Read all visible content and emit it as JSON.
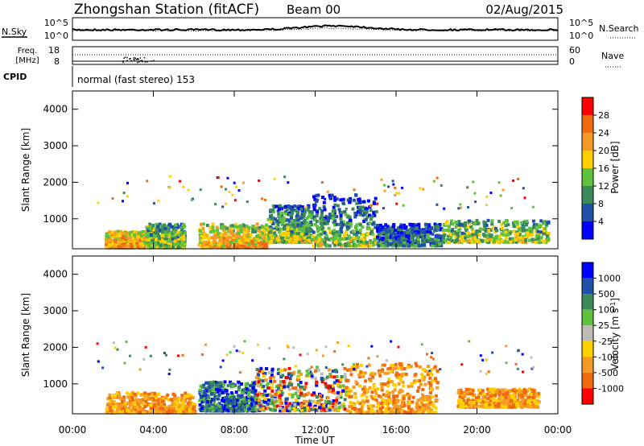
{
  "header": {
    "station": "Zhongshan Station (fitACF)",
    "beam": "Beam 00",
    "date": "02/Aug/2015"
  },
  "strip": {
    "nsky_label": "N.Sky",
    "nsearch_label": "N.Search",
    "freq_label_1": "Freq.",
    "freq_label_2": "[MHz]",
    "nave_label": "Nave",
    "cpid_label": "CPID",
    "cpid_text": "normal (fast stereo) 153",
    "noise_left_ticks": [
      "10^5",
      "10^0"
    ],
    "noise_right_ticks": [
      "10^5",
      "10^0"
    ],
    "freq_left_ticks": [
      "18",
      "8"
    ],
    "freq_right_ticks": [
      "60",
      "0"
    ]
  },
  "chart_data": [
    {
      "type": "heatmap",
      "panel": "power",
      "ylabel": "Slant Range [km]",
      "xlabel": "Time UT",
      "ylim": [
        180,
        4500
      ],
      "y_ticks": [
        "1000",
        "2000",
        "3000",
        "4000"
      ],
      "x_ticks": [
        "00:00",
        "04:00",
        "08:00",
        "12:00",
        "16:00",
        "20:00",
        "00:00"
      ],
      "colorbar": {
        "label": "Power [dB]",
        "ticks": [
          "4",
          "8",
          "12",
          "16",
          "20",
          "24",
          "28"
        ],
        "colors": [
          "#0000ff",
          "#2050a8",
          "#3c8a5a",
          "#5ec23c",
          "#ffd000",
          "#f59a24",
          "#f06a10",
          "#ff0000"
        ]
      },
      "regions": [
        {
          "t": [
            1.6,
            3.6
          ],
          "r": [
            250,
            700
          ],
          "value": "high"
        },
        {
          "t": [
            3.6,
            5.5
          ],
          "r": [
            250,
            900
          ],
          "value": "medium"
        },
        {
          "t": [
            6.2,
            9.6
          ],
          "r": [
            250,
            900
          ],
          "value": "high"
        },
        {
          "t": [
            9.6,
            11.8
          ],
          "r": [
            400,
            1400
          ],
          "value": "medium"
        },
        {
          "t": [
            11.8,
            15.0
          ],
          "r": [
            300,
            1700
          ],
          "value": "medium"
        },
        {
          "t": [
            15.0,
            18.2
          ],
          "r": [
            300,
            900
          ],
          "value": "low"
        },
        {
          "t": [
            18.2,
            23.5
          ],
          "r": [
            400,
            1000
          ],
          "value": "medium"
        }
      ]
    },
    {
      "type": "heatmap",
      "panel": "velocity",
      "ylabel": "Slant Range [km]",
      "xlabel": "Time UT",
      "ylim": [
        180,
        4500
      ],
      "y_ticks": [
        "1000",
        "2000",
        "3000",
        "4000"
      ],
      "x_ticks": [
        "00:00",
        "04:00",
        "08:00",
        "12:00",
        "16:00",
        "20:00",
        "00:00"
      ],
      "colorbar": {
        "label": "Velocity [m s^-1]",
        "ticks": [
          "1000",
          "500",
          "100",
          "25",
          "-25",
          "-100",
          "-500",
          "-1000"
        ],
        "colors": [
          "#0000ff",
          "#2050a8",
          "#3c8a5a",
          "#5ec23c",
          "#bdbdb5",
          "#ffd000",
          "#f59a24",
          "#f06a10",
          "#ff0000"
        ]
      },
      "regions": [
        {
          "t": [
            1.6,
            6.0
          ],
          "r": [
            250,
            800
          ],
          "value": "negative"
        },
        {
          "t": [
            6.2,
            9.0
          ],
          "r": [
            300,
            1100
          ],
          "value": "positive"
        },
        {
          "t": [
            9.0,
            13.5
          ],
          "r": [
            300,
            1500
          ],
          "value": "mixed"
        },
        {
          "t": [
            13.5,
            18.0
          ],
          "r": [
            250,
            1600
          ],
          "value": "negative"
        },
        {
          "t": [
            19.0,
            23.0
          ],
          "r": [
            400,
            900
          ],
          "value": "negative"
        }
      ]
    }
  ]
}
